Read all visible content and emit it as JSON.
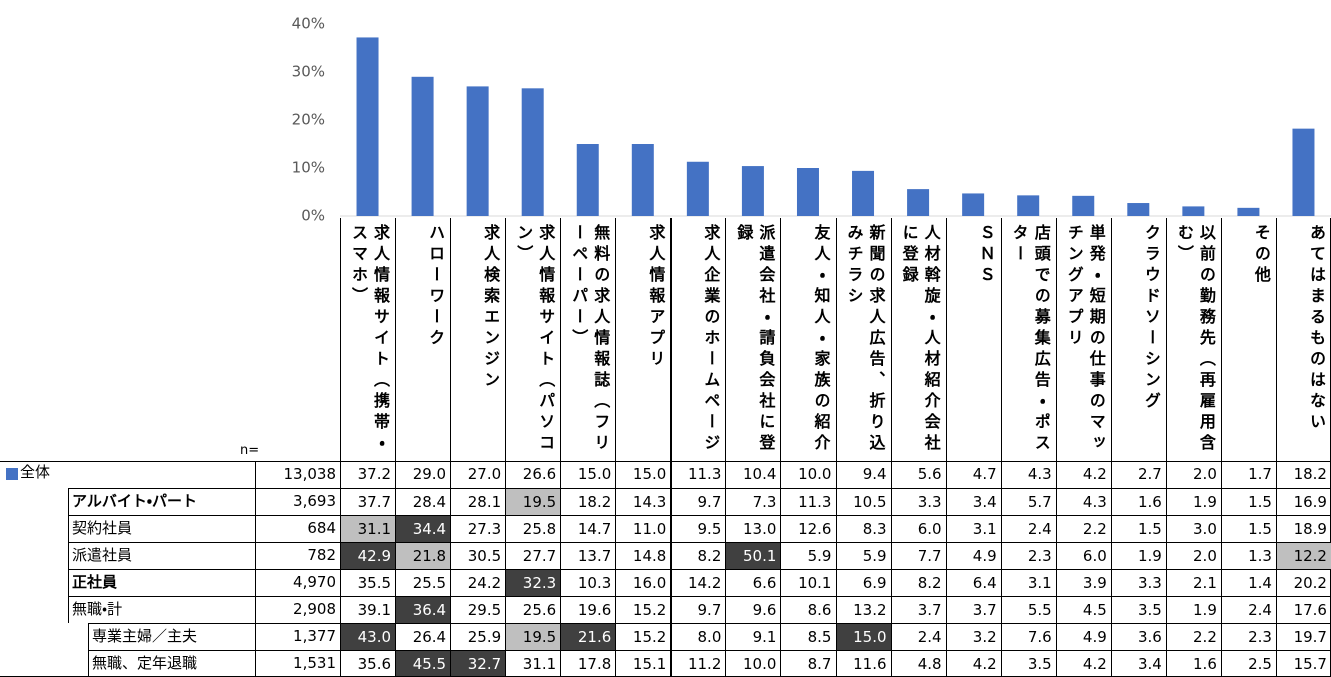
{
  "chart_data": {
    "type": "bar",
    "categories": [
      "求人情報サイト（携帯・スマホ）",
      "ハローワーク",
      "求人検索エンジン",
      "求人情報サイト（パソコン）",
      "無料の求人情報誌（フリーペーパー）",
      "求人情報アプリ",
      "求人企業のホームページ",
      "派遣会社・請負会社に登録",
      "友人・知人・家族の紹介",
      "新聞の求人広告、折り込みチラシ",
      "人材斡旋・人材紹介会社に登録",
      "ＳＮＳ",
      "店頭での募集広告・ポスター",
      "単発・短期の仕事のマッチングアプリ",
      "クラウドソーシング",
      "以前の勤務先（再雇用含む）",
      "その他",
      "あてはまるものはない"
    ],
    "series": [
      {
        "name": "全体",
        "color": "#4472c4",
        "values": [
          37.2,
          29.0,
          27.0,
          26.6,
          15.0,
          15.0,
          11.3,
          10.4,
          10.0,
          9.4,
          5.6,
          4.7,
          4.3,
          4.2,
          2.7,
          2.0,
          1.7,
          18.2
        ],
        "value_labels": [
          "37.2",
          "29.0",
          "27.0",
          "26.6",
          "15.0",
          "15.0",
          "11.3",
          "10.4",
          "10.0",
          "9.4",
          "5.6",
          "4.7",
          "4.3",
          "4.2",
          "2.7",
          "2.0",
          "1.7",
          "18.2"
        ]
      }
    ],
    "ylim": [
      0,
      40
    ],
    "yticks": [
      {
        "value": 0,
        "label": "0%"
      },
      {
        "value": 10,
        "label": "10%"
      },
      {
        "value": 20,
        "label": "20%"
      },
      {
        "value": 30,
        "label": "30%"
      },
      {
        "value": 40,
        "label": "40%"
      }
    ],
    "grid": false
  },
  "table": {
    "n_label": "n=",
    "total_n": "13,038",
    "rows": [
      {
        "label": "アルバイト・パート",
        "n": "3,693",
        "values": [
          "37.7",
          "28.4",
          "28.1",
          "19.5",
          "18.2",
          "14.3",
          "9.7",
          "7.3",
          "11.3",
          "10.5",
          "3.3",
          "3.4",
          "5.7",
          "4.3",
          "1.6",
          "1.9",
          "1.5",
          "16.9"
        ]
      },
      {
        "label": "契約社員",
        "n": "684",
        "values": [
          "31.1",
          "34.4",
          "27.3",
          "25.8",
          "14.7",
          "11.0",
          "9.5",
          "13.0",
          "12.6",
          "8.3",
          "6.0",
          "3.1",
          "2.4",
          "2.2",
          "1.5",
          "3.0",
          "1.5",
          "18.9"
        ]
      },
      {
        "label": "派遣社員",
        "n": "782",
        "values": [
          "42.9",
          "21.8",
          "30.5",
          "27.7",
          "13.7",
          "14.8",
          "8.2",
          "50.1",
          "5.9",
          "5.9",
          "7.7",
          "4.9",
          "2.3",
          "6.0",
          "1.9",
          "2.0",
          "1.3",
          "12.2"
        ]
      },
      {
        "label": "正社員",
        "n": "4,970",
        "values": [
          "35.5",
          "25.5",
          "24.2",
          "32.3",
          "10.3",
          "16.0",
          "14.2",
          "6.6",
          "10.1",
          "6.9",
          "8.2",
          "6.4",
          "3.1",
          "3.9",
          "3.3",
          "2.1",
          "1.4",
          "20.2"
        ]
      },
      {
        "label": "無職・計",
        "n": "2,908",
        "values": [
          "39.1",
          "36.4",
          "29.5",
          "25.6",
          "19.6",
          "15.2",
          "9.7",
          "9.6",
          "8.6",
          "13.2",
          "3.7",
          "3.7",
          "5.5",
          "4.5",
          "3.5",
          "1.9",
          "2.4",
          "17.6"
        ]
      },
      {
        "label": "専業主婦／主夫",
        "n": "1,377",
        "values": [
          "43.0",
          "26.4",
          "25.9",
          "19.5",
          "21.6",
          "15.2",
          "8.0",
          "9.1",
          "8.5",
          "15.0",
          "2.4",
          "3.2",
          "7.6",
          "4.9",
          "3.6",
          "2.2",
          "2.3",
          "19.7"
        ]
      },
      {
        "label": "無職、定年退職",
        "n": "1,531",
        "values": [
          "35.6",
          "45.5",
          "32.7",
          "31.1",
          "17.8",
          "15.1",
          "11.2",
          "10.0",
          "8.7",
          "11.6",
          "4.8",
          "4.2",
          "3.5",
          "4.2",
          "3.4",
          "1.6",
          "2.5",
          "15.7"
        ]
      }
    ]
  }
}
